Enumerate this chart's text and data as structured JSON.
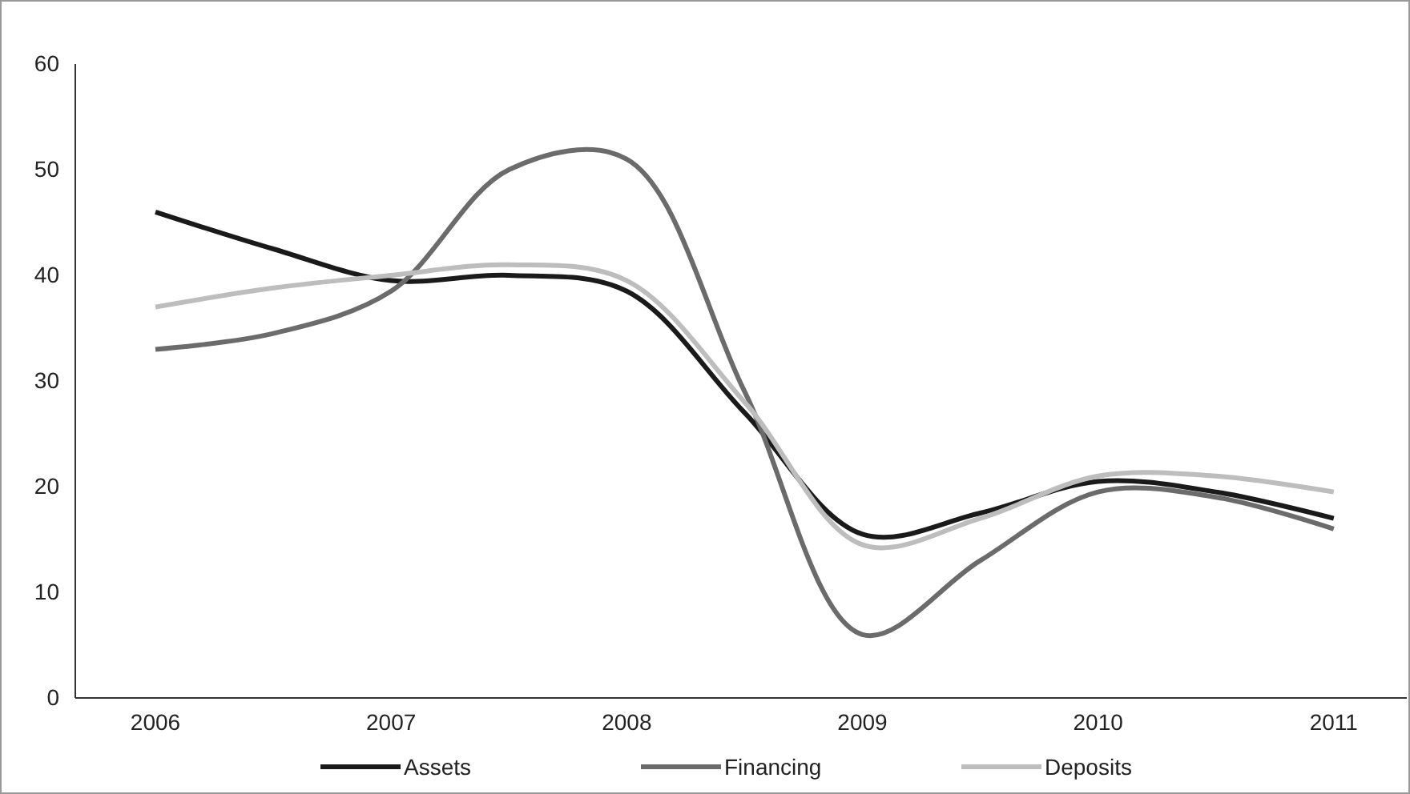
{
  "chart_data": {
    "type": "line",
    "x": [
      2006,
      2006.5,
      2007,
      2007.5,
      2008,
      2008.5,
      2009,
      2009.5,
      2010,
      2010.5,
      2011
    ],
    "series": [
      {
        "name": "Assets",
        "color": "#1a1a1a",
        "values": [
          46,
          42.5,
          39.5,
          40,
          38.5,
          27,
          15.5,
          17.5,
          20.5,
          19.5,
          17
        ]
      },
      {
        "name": "Financing",
        "color": "#6b6b6b",
        "values": [
          33,
          34.5,
          38.5,
          50,
          51,
          29,
          6,
          13,
          19.5,
          19,
          16
        ]
      },
      {
        "name": "Deposits",
        "color": "#bdbdbd",
        "values": [
          37,
          38.8,
          40,
          41,
          39.5,
          28,
          14.5,
          17,
          21,
          21,
          19.5
        ]
      }
    ],
    "xlim": [
      2005.66,
      2011.31
    ],
    "xticks": [
      2006,
      2007,
      2008,
      2009,
      2010,
      2011
    ],
    "ylim": [
      0,
      60
    ],
    "yticks": [
      0,
      10,
      20,
      30,
      40,
      50,
      60
    ],
    "grid": false,
    "legend": "bottom",
    "marker": "none",
    "line_style": "solid"
  }
}
